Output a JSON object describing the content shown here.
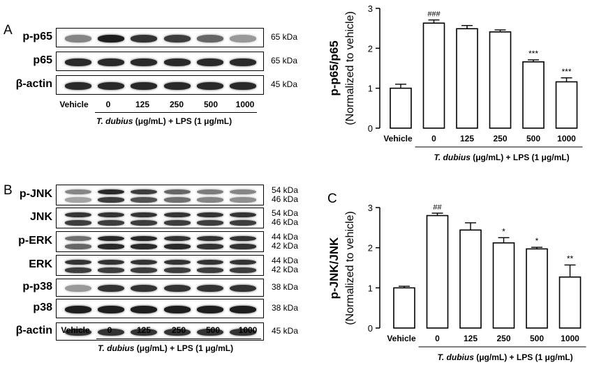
{
  "lanes": [
    "Vehicle",
    "0",
    "125",
    "250",
    "500",
    "1000"
  ],
  "treatment_prefix": "T. dubius",
  "treatment_suffix": " (μg/mL) + LPS (1 μg/mL)",
  "panelA": {
    "letter": "A",
    "blots": [
      {
        "label": "p-p65",
        "kda": [
          "65 kDa"
        ],
        "bands": [
          [
            0.45,
            0.95,
            0.85,
            0.8,
            0.6,
            0.35
          ]
        ]
      },
      {
        "label": "p65",
        "kda": [
          "65 kDa"
        ],
        "bands": [
          [
            0.9,
            0.9,
            0.9,
            0.9,
            0.9,
            0.9
          ]
        ]
      },
      {
        "label": "β-actin",
        "kda": [
          "45 kDa"
        ],
        "bands": [
          [
            0.9,
            0.9,
            0.9,
            0.9,
            0.9,
            0.9
          ]
        ]
      }
    ]
  },
  "panelB": {
    "letter": "B",
    "blots": [
      {
        "label": "p-JNK",
        "kda": [
          "54 kDa",
          "46 kDa"
        ],
        "bands": [
          [
            0.45,
            0.9,
            0.8,
            0.6,
            0.5,
            0.45
          ],
          [
            0.3,
            0.8,
            0.7,
            0.55,
            0.45,
            0.4
          ]
        ]
      },
      {
        "label": "JNK",
        "kda": [
          "54 kDa",
          "46 kDa"
        ],
        "bands": [
          [
            0.85,
            0.85,
            0.85,
            0.85,
            0.85,
            0.85
          ],
          [
            0.8,
            0.8,
            0.8,
            0.8,
            0.8,
            0.8
          ]
        ]
      },
      {
        "label": "p-ERK",
        "kda": [
          "44 kDa",
          "42 kDa"
        ],
        "bands": [
          [
            0.55,
            0.9,
            0.9,
            0.85,
            0.85,
            0.85
          ],
          [
            0.6,
            0.9,
            0.9,
            0.9,
            0.85,
            0.85
          ]
        ]
      },
      {
        "label": "ERK",
        "kda": [
          "44 kDa",
          "42 kDa"
        ],
        "bands": [
          [
            0.85,
            0.85,
            0.85,
            0.85,
            0.85,
            0.85
          ],
          [
            0.8,
            0.8,
            0.8,
            0.8,
            0.8,
            0.8
          ]
        ]
      },
      {
        "label": "p-p38",
        "kda": [
          "38 kDa"
        ],
        "bands": [
          [
            0.35,
            0.85,
            0.85,
            0.85,
            0.85,
            0.85
          ]
        ]
      },
      {
        "label": "p38",
        "kda": [
          "38 kDa"
        ],
        "bands": [
          [
            0.95,
            0.95,
            0.95,
            0.95,
            0.95,
            0.95
          ]
        ]
      },
      {
        "label": "β-actin",
        "kda": [
          "45 kDa"
        ],
        "bands": [
          [
            0.85,
            0.85,
            0.85,
            0.85,
            0.85,
            0.85
          ]
        ]
      }
    ]
  },
  "chart_data": [
    {
      "type": "bar",
      "panel": "",
      "ylabel_line1": "p-p65/p65",
      "ylabel_line2": "(Normalized to vehicle)",
      "categories": [
        "Vehicle",
        "0",
        "125",
        "250",
        "500",
        "1000"
      ],
      "values": [
        1.0,
        2.63,
        2.49,
        2.41,
        1.66,
        1.16
      ],
      "errors": [
        0.1,
        0.08,
        0.08,
        0.05,
        0.05,
        0.1
      ],
      "annotations": [
        "",
        "###",
        "",
        "",
        "***",
        "***"
      ],
      "ylim": [
        0,
        3
      ],
      "yticks": [
        "0",
        "1",
        "2",
        "3"
      ],
      "bar_color": "#ffffff",
      "legend": "none",
      "grid": false
    },
    {
      "type": "bar",
      "panel": "C",
      "ylabel_line1": "p-JNK/JNK",
      "ylabel_line2": "(Normalized to vehicle)",
      "categories": [
        "Vehicle",
        "0",
        "125",
        "250",
        "500",
        "1000"
      ],
      "values": [
        1.0,
        2.8,
        2.44,
        2.12,
        1.97,
        1.27
      ],
      "errors": [
        0.04,
        0.06,
        0.18,
        0.13,
        0.04,
        0.3
      ],
      "annotations": [
        "",
        "##",
        "",
        "*",
        "*",
        "**"
      ],
      "ylim": [
        0,
        3
      ],
      "yticks": [
        "0",
        "1",
        "2",
        "3"
      ],
      "bar_color": "#ffffff",
      "legend": "none",
      "grid": false
    }
  ]
}
